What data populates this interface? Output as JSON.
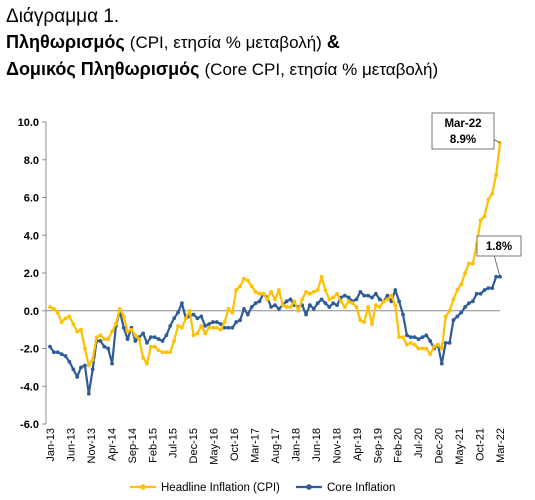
{
  "header": {
    "line1": "Διάγραμμα 1.",
    "line2_bold": "Πληθωρισμός",
    "line2_light": "(CPI, ετησία % μεταβολή)",
    "line2_amp": "&",
    "line3_bold": "Δομικός Πληθωρισμός",
    "line3_light": "(Core CPI, ετησία % μεταβολή)"
  },
  "chart_data": {
    "type": "line",
    "ylim": [
      -6,
      10
    ],
    "yticks": [
      "-6.0",
      "-4.0",
      "-2.0",
      "0.0",
      "2.0",
      "4.0",
      "6.0",
      "8.0",
      "10.0"
    ],
    "ytick_values": [
      -6,
      -4,
      -2,
      0,
      2,
      4,
      6,
      8,
      10
    ],
    "grid": false,
    "legend_placement": "bottom",
    "x_start": "Jan-13",
    "x_end": "Mar-22",
    "xticks": [
      "Jan-13",
      "Jun-13",
      "Nov-13",
      "Apr-14",
      "Sep-14",
      "Feb-15",
      "Jul-15",
      "Dec-15",
      "May-16",
      "Oct-16",
      "Mar-17",
      "Aug-17",
      "Jan-18",
      "Jun-18",
      "Nov-18",
      "Apr-19",
      "Sep-19",
      "Feb-20",
      "Jul-20",
      "Dec-20",
      "May-21",
      "Oct-21",
      "Mar-22"
    ],
    "series": [
      {
        "name": "Headline Inflation (CPI)",
        "color": "#FFC000",
        "values": [
          0.2,
          0.1,
          -0.1,
          -0.6,
          -0.4,
          -0.3,
          -0.7,
          -1.1,
          -1.0,
          -2.0,
          -2.9,
          -2.6,
          -1.4,
          -1.3,
          -1.5,
          -1.5,
          -1.1,
          -0.7,
          0.1,
          -0.3,
          -1.1,
          -1.0,
          -1.3,
          -1.5,
          -2.5,
          -2.8,
          -1.9,
          -1.9,
          -2.1,
          -2.2,
          -2.2,
          -2.2,
          -1.6,
          -0.8,
          -0.9,
          -0.4,
          0.0,
          -1.3,
          -1.2,
          -0.8,
          -1.2,
          -0.9,
          -0.9,
          -0.9,
          -1.0,
          -0.6,
          0.1,
          -0.1,
          1.1,
          1.3,
          1.7,
          1.6,
          1.3,
          1.0,
          0.9,
          0.9,
          0.6,
          1.0,
          0.6,
          1.1,
          0.3,
          0.2,
          0.2,
          0.5,
          0.0,
          0.6,
          1.0,
          0.9,
          1.0,
          1.1,
          1.8,
          1.1,
          0.6,
          0.7,
          0.9,
          0.5,
          0.2,
          0.5,
          0.4,
          0.2,
          -0.5,
          -0.6,
          0.2,
          -0.7,
          0.3,
          0.2,
          0.5,
          0.6,
          0.8,
          0.3,
          -1.4,
          -1.4,
          -1.8,
          -1.7,
          -1.8,
          -2.0,
          -2.0,
          -2.0,
          -2.3,
          -1.9,
          -1.8,
          -2.0,
          -0.3,
          0.0,
          0.6,
          1.1,
          1.4,
          2.0,
          2.5,
          2.5,
          3.5,
          4.8,
          5.0,
          5.9,
          6.2,
          7.2,
          8.9
        ]
      },
      {
        "name": "Core Inflation",
        "color": "#2E5B9A",
        "values": [
          -1.9,
          -2.2,
          -2.2,
          -2.3,
          -2.4,
          -2.7,
          -3.1,
          -3.5,
          -3.0,
          -2.9,
          -4.4,
          -3.1,
          -1.6,
          -1.6,
          -1.9,
          -2.0,
          -2.8,
          -0.8,
          0.0,
          -0.9,
          -1.5,
          -0.9,
          -1.6,
          -1.4,
          -1.2,
          -1.7,
          -1.4,
          -1.4,
          -1.5,
          -1.6,
          -1.3,
          -0.8,
          -0.4,
          -0.1,
          0.4,
          -0.4,
          -0.3,
          -0.2,
          -0.4,
          -0.3,
          -0.8,
          -0.7,
          -0.6,
          -0.6,
          -0.7,
          -0.9,
          -0.9,
          -0.9,
          -0.6,
          -0.5,
          0.1,
          -0.2,
          0.2,
          0.4,
          0.5,
          0.9,
          0.7,
          0.2,
          0.3,
          0.1,
          0.3,
          0.5,
          0.6,
          0.3,
          0.2,
          0.3,
          -0.2,
          0.3,
          0.1,
          0.4,
          0.6,
          0.4,
          0.2,
          0.4,
          0.3,
          0.7,
          0.8,
          0.7,
          0.5,
          0.6,
          1.0,
          0.8,
          0.8,
          0.7,
          0.9,
          0.6,
          0.5,
          0.8,
          0.5,
          1.1,
          0.5,
          -0.2,
          -1.3,
          -1.4,
          -1.4,
          -1.5,
          -1.4,
          -1.3,
          -1.6,
          -2.0,
          -1.8,
          -2.8,
          -1.7,
          -1.7,
          -0.5,
          -0.3,
          -0.1,
          0.2,
          0.4,
          0.5,
          0.9,
          0.9,
          1.1,
          1.2,
          1.2,
          1.8,
          1.8
        ]
      }
    ],
    "annotations": [
      {
        "text_line1": "Mar-22",
        "text_line2": "8.9%",
        "series": "Headline Inflation (CPI)",
        "x": "Mar-22",
        "y": 8.9
      },
      {
        "text_line1": "1.8%",
        "series": "Core Inflation",
        "x": "Mar-22",
        "y": 1.8
      }
    ]
  }
}
